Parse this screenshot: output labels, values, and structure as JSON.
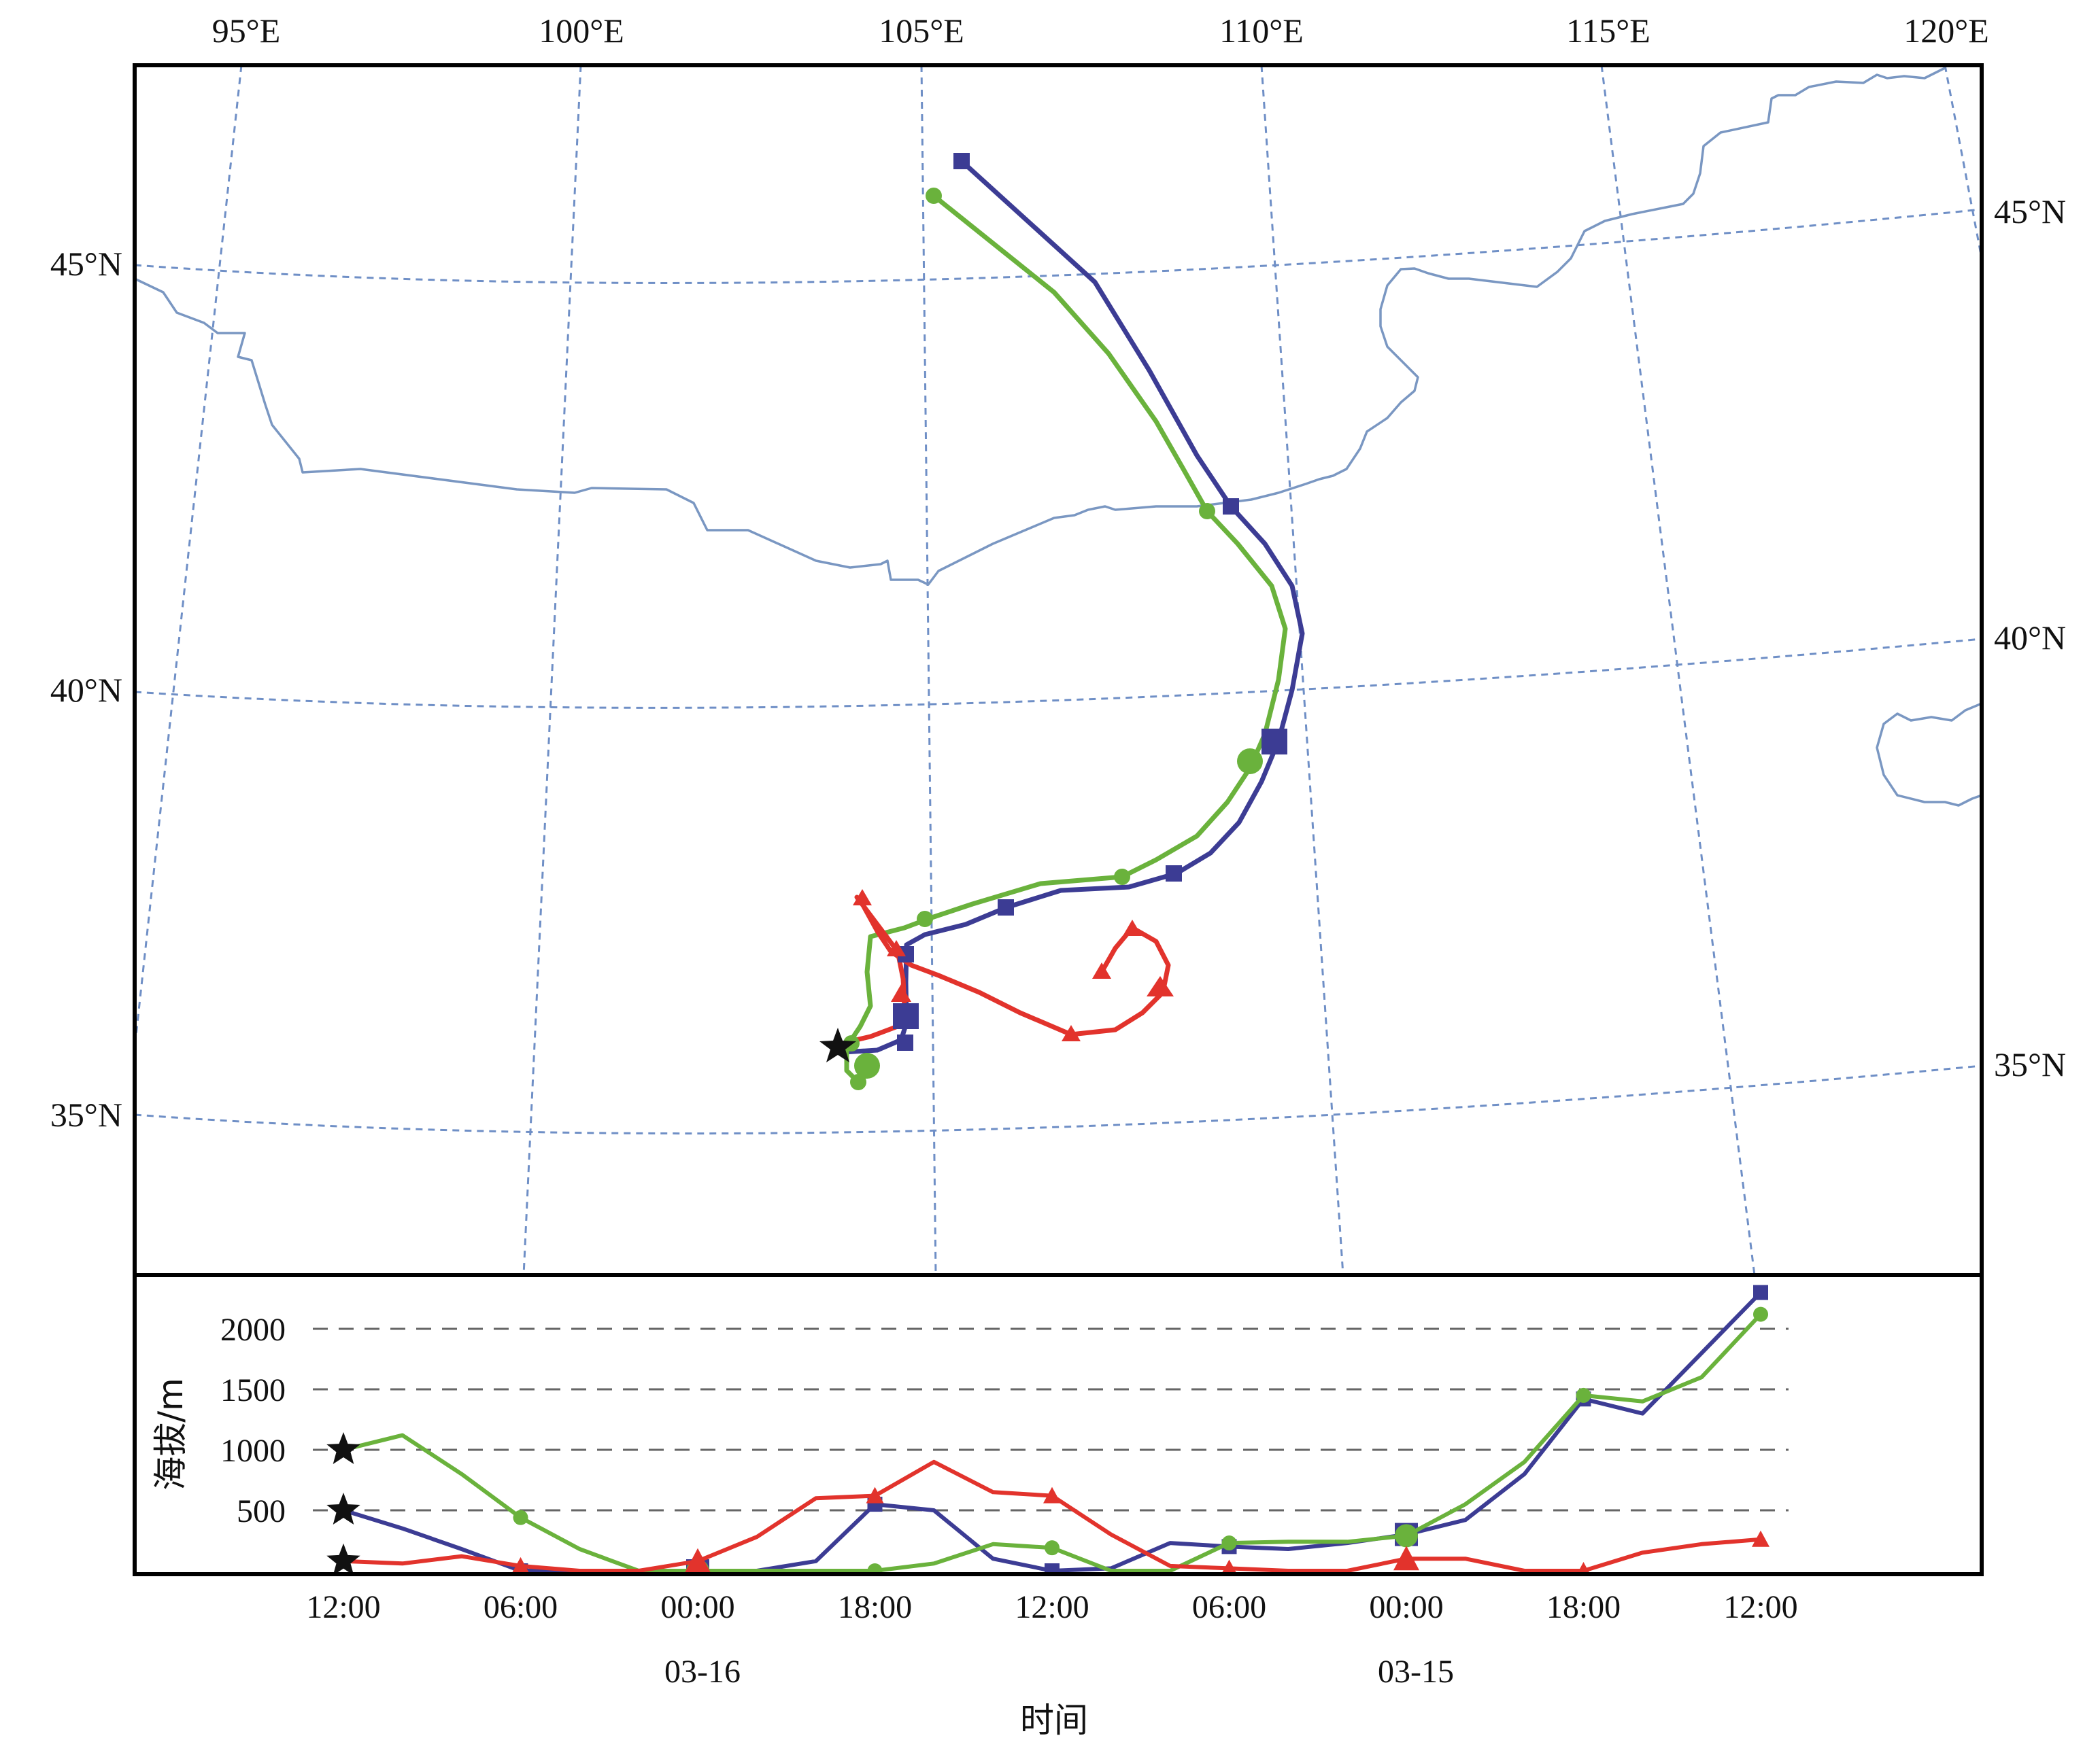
{
  "map": {
    "lon_labels": [
      "95°E",
      "100°E",
      "105°E",
      "110°E",
      "115°E",
      "120°E"
    ],
    "lat_labels_left": [
      "45°N",
      "40°N",
      "35°N"
    ],
    "lat_labels_right": [
      "45°N",
      "40°N",
      "35°N"
    ]
  },
  "chart_data": {
    "type": "line",
    "ylabel": "海拔/m",
    "xlabel": "时间",
    "ylim": [
      0,
      2200
    ],
    "y_ticks": [
      "500",
      "1000",
      "1500",
      "2000"
    ],
    "y_tick_values": [
      500,
      1000,
      1500,
      2000
    ],
    "x_tick_labels": [
      "12:00",
      "06:00",
      "00:00",
      "18:00",
      "12:00",
      "06:00",
      "00:00",
      "18:00",
      "12:00"
    ],
    "x_date_labels": [
      "03-16",
      "03-15"
    ],
    "hours_back": [
      0,
      6,
      12,
      18,
      24,
      30,
      36,
      42,
      48
    ],
    "series": [
      {
        "color": "#3c3c94",
        "marker": "square",
        "hours_back": [
          0,
          2,
          4,
          6,
          8,
          10,
          12,
          14,
          16,
          18,
          20,
          22,
          24,
          26,
          28,
          30,
          32,
          34,
          36,
          38,
          40,
          42,
          44,
          46,
          48
        ],
        "values": [
          500,
          350,
          180,
          0,
          0,
          0,
          0,
          0,
          80,
          550,
          500,
          100,
          0,
          20,
          230,
          200,
          180,
          230,
          300,
          420,
          800,
          1420,
          1300,
          1800,
          2300
        ]
      },
      {
        "color": "#6ab23c",
        "marker": "circle",
        "hours_back": [
          0,
          2,
          4,
          6,
          8,
          10,
          12,
          14,
          16,
          18,
          20,
          22,
          24,
          26,
          28,
          30,
          32,
          34,
          36,
          38,
          40,
          42,
          44,
          46,
          48
        ],
        "values": [
          1000,
          1120,
          800,
          440,
          180,
          0,
          0,
          0,
          0,
          0,
          60,
          220,
          190,
          0,
          0,
          230,
          240,
          240,
          290,
          550,
          900,
          1450,
          1400,
          1600,
          2120
        ]
      },
      {
        "color": "#e2332c",
        "marker": "triangle",
        "hours_back": [
          0,
          2,
          4,
          6,
          8,
          10,
          12,
          14,
          16,
          18,
          20,
          22,
          24,
          26,
          28,
          30,
          32,
          34,
          36,
          38,
          40,
          42,
          44,
          46,
          48
        ],
        "values": [
          80,
          60,
          120,
          40,
          0,
          0,
          80,
          280,
          600,
          620,
          900,
          650,
          620,
          300,
          40,
          20,
          0,
          0,
          100,
          100,
          0,
          0,
          150,
          220,
          260
        ]
      }
    ],
    "start_star_values": [
      500,
      1000,
      80
    ]
  }
}
